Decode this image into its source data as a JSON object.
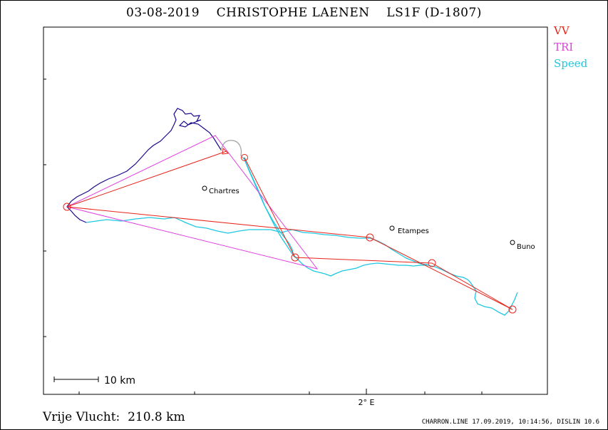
{
  "title": "03-08-2019    CHRISTOPHE LAENEN    LS1F (D-1807)",
  "legend": {
    "vv": {
      "label": "VV",
      "color": "#e8231b"
    },
    "tri": {
      "label": "TRI",
      "color": "#e040e0"
    },
    "speed": {
      "label": "Speed",
      "color": "#1ec8e0"
    }
  },
  "towns": [
    {
      "name": "Chartres"
    },
    {
      "name": "Etampes"
    },
    {
      "name": "Buno"
    }
  ],
  "axis": {
    "x_tick_label": "2° E"
  },
  "scale_bar": {
    "label": "10 km"
  },
  "distance": "Vrije Vlucht:  210.8 km",
  "footer": "CHARRON.LINE 17.09.2019, 10:14:56, DISLIN 10.6",
  "track_colors": {
    "climb": "#1a0a8a",
    "speed": "#1ec8e0",
    "glide": "#a0a0a0"
  }
}
